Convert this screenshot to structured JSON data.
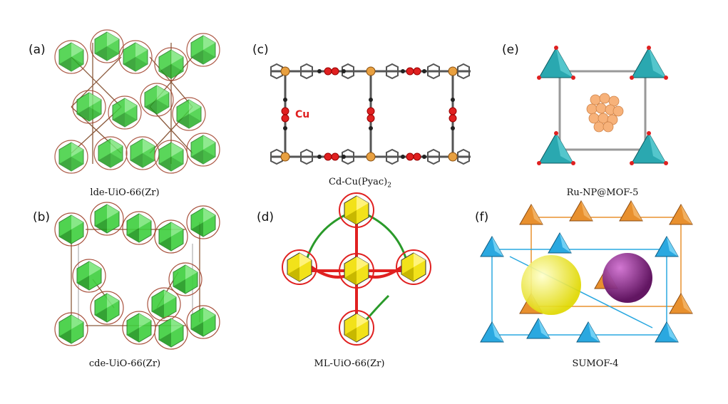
{
  "panels": {
    "a": {
      "tag": "(a)",
      "caption": "lde-UiO-66(Zr)"
    },
    "b": {
      "tag": "(b)",
      "caption": "cde-UiO-66(Zr)"
    },
    "c": {
      "tag": "(c)",
      "caption": "Cd-Cu(Pyac)",
      "caption_sub": "2",
      "atom_label": "Cu"
    },
    "d": {
      "tag": "(d)",
      "caption": "ML-UiO-66(Zr)"
    },
    "e": {
      "tag": "(e)",
      "caption": "Ru-NP@MOF-5"
    },
    "f": {
      "tag": "(f)",
      "caption": "SUMOF-4"
    }
  },
  "colors": {
    "zr_cluster": "#3ecf3e",
    "linker_brown": "#8b5a3c",
    "cu_red": "#e02020",
    "cd_orange": "#e8a040",
    "bond_gray": "#666666",
    "ml_yellow": "#f2e21a",
    "ml_red": "#e02020",
    "ml_green": "#2a9a2a",
    "mof5_teal": "#2aa8b0",
    "ru_np": "#f7b27a",
    "sumof_orange": "#e8902e",
    "sumof_blue": "#2aa8e0",
    "sphere_yellow": "#f0f020",
    "sphere_purple": "#8a1a8a"
  }
}
